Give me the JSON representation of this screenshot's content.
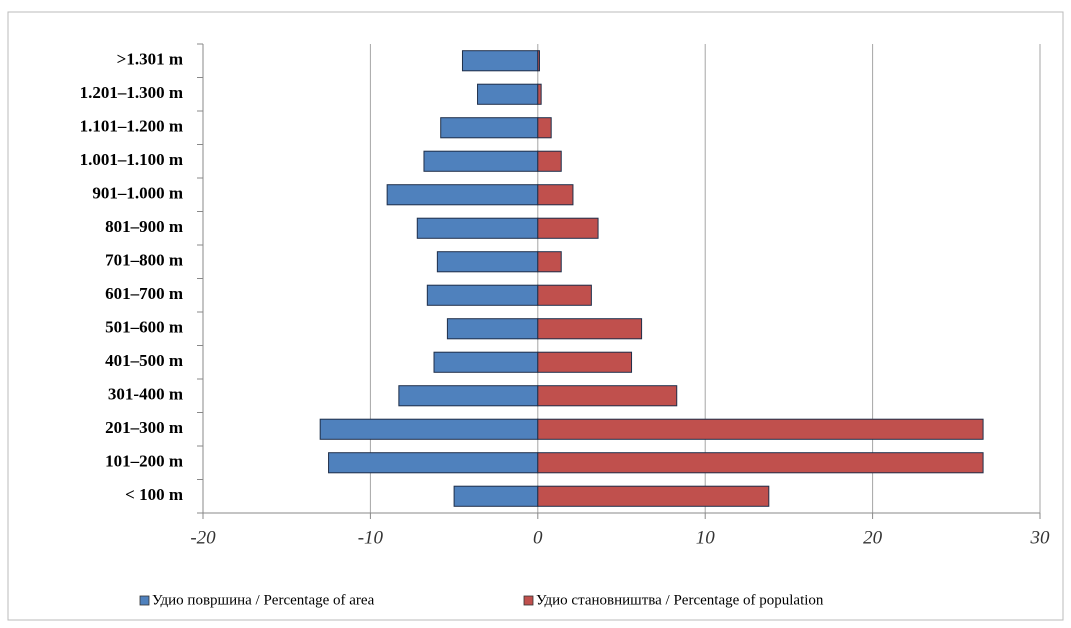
{
  "chart_data": {
    "type": "bar",
    "orientation": "horizontal",
    "categories": [
      ">1.301 m",
      "1.201–1.300 m",
      "1.101–1.200 m",
      "1.001–1.100 m",
      "901–1.000 m",
      "801–900 m",
      "701–800 m",
      "601–700 m",
      "501–600 m",
      "401–500 m",
      "301-400 m",
      "201–300 m",
      "101–200 m",
      "< 100 m"
    ],
    "series": [
      {
        "name": "Удио површина / Percentage of area",
        "color": "#4f81bd",
        "values": [
          -4.5,
          -3.6,
          -5.8,
          -6.8,
          -9.0,
          -7.2,
          -6.0,
          -6.6,
          -5.4,
          -6.2,
          -8.3,
          -13.0,
          -12.5,
          -5.0
        ]
      },
      {
        "name": "Удио становништва / Percentage of population",
        "color": "#c0504d",
        "values": [
          0.1,
          0.2,
          0.8,
          1.4,
          2.1,
          3.6,
          1.4,
          3.2,
          6.2,
          5.6,
          8.3,
          26.6,
          26.6,
          13.8
        ]
      }
    ],
    "xlim": [
      -20,
      30
    ],
    "xticks": [
      -20,
      -10,
      0,
      10,
      20,
      30
    ],
    "grid": true,
    "legend": "bottom"
  }
}
